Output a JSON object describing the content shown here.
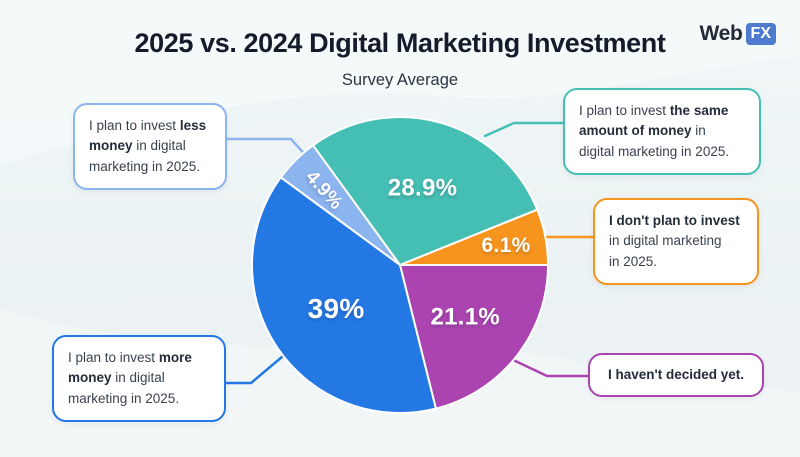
{
  "header": {
    "title": "2025 vs. 2024 Digital Marketing Investment",
    "subtitle": "Survey Average",
    "logo": {
      "text": "Web",
      "badge": "FX",
      "badge_color": "#4E7BCE",
      "text_color": "#222A35"
    }
  },
  "chart_data": {
    "type": "pie",
    "title": "2025 vs. 2024 Digital Marketing Investment",
    "subtitle": "Survey Average",
    "unit": "percent",
    "start_angle_deg": -36,
    "legend_position": "callouts",
    "slices": [
      {
        "id": "same",
        "name": "Invest the same amount of money",
        "value": 28.9,
        "display": "28.9%",
        "color": "#45BFB3"
      },
      {
        "id": "none",
        "name": "Don't plan to invest",
        "value": 6.1,
        "display": "6.1%",
        "color": "#F7941E"
      },
      {
        "id": "undecided",
        "name": "Haven't decided yet",
        "value": 21.1,
        "display": "21.1%",
        "color": "#AB44B0"
      },
      {
        "id": "more",
        "name": "Invest more money",
        "value": 39,
        "display": "39%",
        "color": "#2478E4"
      },
      {
        "id": "less",
        "name": "Invest less money",
        "value": 4.9,
        "display": "4.9%",
        "color": "#8CB4EF"
      }
    ]
  },
  "callouts": [
    {
      "id": "less",
      "color": "#8CB4EF",
      "text": "I plan to invest less money in digital marketing in 2025.",
      "segments": [
        {
          "t": "I plan to invest ",
          "bold": false
        },
        {
          "t": "less",
          "bold": true
        },
        {
          "br": true
        },
        {
          "t": "money",
          "bold": true
        },
        {
          "t": " in digital",
          "bold": false
        },
        {
          "br": true
        },
        {
          "t": "marketing in 2025.",
          "bold": false
        }
      ]
    },
    {
      "id": "same",
      "color": "#45BFB3",
      "text": "I plan to invest the same amount of money in digital marketing in 2025.",
      "segments": [
        {
          "t": "I plan to invest ",
          "bold": false
        },
        {
          "t": "the same",
          "bold": true
        },
        {
          "br": true
        },
        {
          "t": "amount of money",
          "bold": true
        },
        {
          "t": " in",
          "bold": false
        },
        {
          "br": true
        },
        {
          "t": "digital marketing in 2025.",
          "bold": false
        }
      ]
    },
    {
      "id": "none",
      "color": "#F7941E",
      "text": "I don't plan to invest in digital marketing in 2025.",
      "segments": [
        {
          "t": "I don't plan to invest",
          "bold": true
        },
        {
          "br": true
        },
        {
          "t": "in digital marketing",
          "bold": false
        },
        {
          "br": true
        },
        {
          "t": "in 2025.",
          "bold": false
        }
      ]
    },
    {
      "id": "undecided",
      "color": "#AB44B0",
      "text": "I haven't decided yet.",
      "segments": [
        {
          "t": "I haven't decided yet.",
          "bold": true
        }
      ]
    },
    {
      "id": "more",
      "color": "#2478E4",
      "text": "I plan to invest more money in digital marketing in 2025.",
      "segments": [
        {
          "t": "I plan to invest ",
          "bold": false
        },
        {
          "t": "more",
          "bold": true
        },
        {
          "br": true
        },
        {
          "t": "money",
          "bold": true
        },
        {
          "t": " in digital",
          "bold": false
        },
        {
          "br": true
        },
        {
          "t": "marketing in 2025.",
          "bold": false
        }
      ]
    }
  ]
}
